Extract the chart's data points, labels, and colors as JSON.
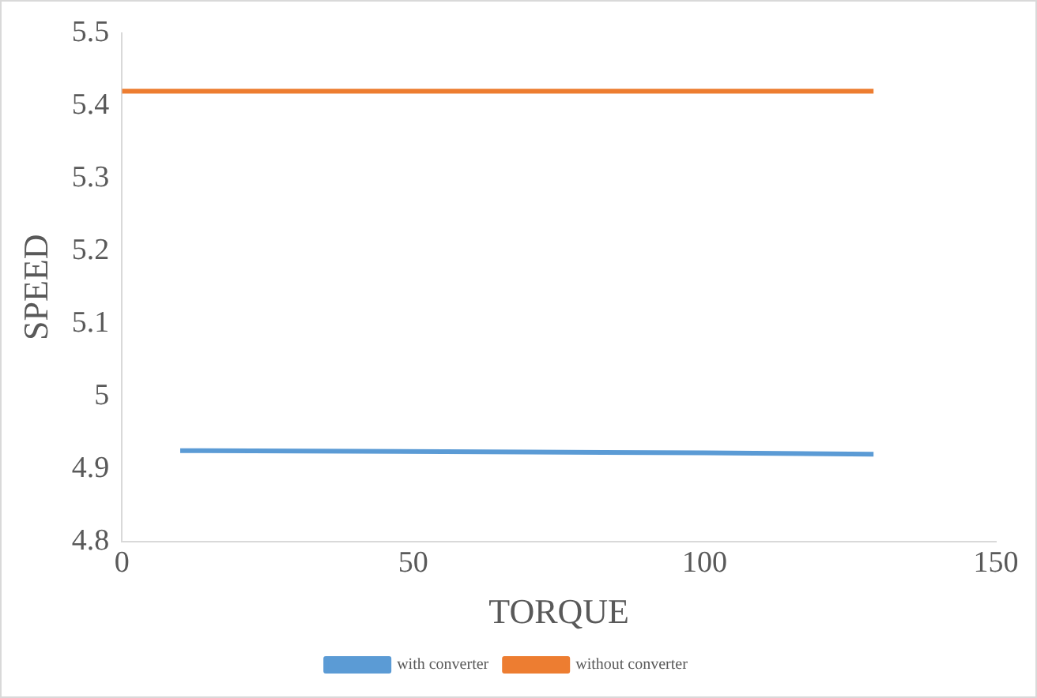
{
  "chart_data": {
    "type": "line",
    "xlabel": "TORQUE",
    "ylabel": "SPEED",
    "xlim": [
      0,
      150
    ],
    "xticks": [
      0,
      50,
      100,
      150
    ],
    "ylim": [
      4.8,
      5.5
    ],
    "yticks": [
      4.8,
      4.9,
      5,
      5.1,
      5.2,
      5.3,
      5.4,
      5.5
    ],
    "legend": "bottom",
    "marker": "none",
    "line_style": "solid",
    "series": [
      {
        "name": "with converter",
        "color": "#5b9bd5",
        "x": [
          10,
          40,
          70,
          100,
          129
        ],
        "values": [
          4.925,
          4.924,
          4.923,
          4.922,
          4.92
        ]
      },
      {
        "name": "without converter",
        "color": "#ed7d31",
        "x": [
          0,
          40,
          70,
          100,
          129
        ],
        "values": [
          5.42,
          5.42,
          5.42,
          5.42,
          5.42
        ]
      }
    ]
  }
}
